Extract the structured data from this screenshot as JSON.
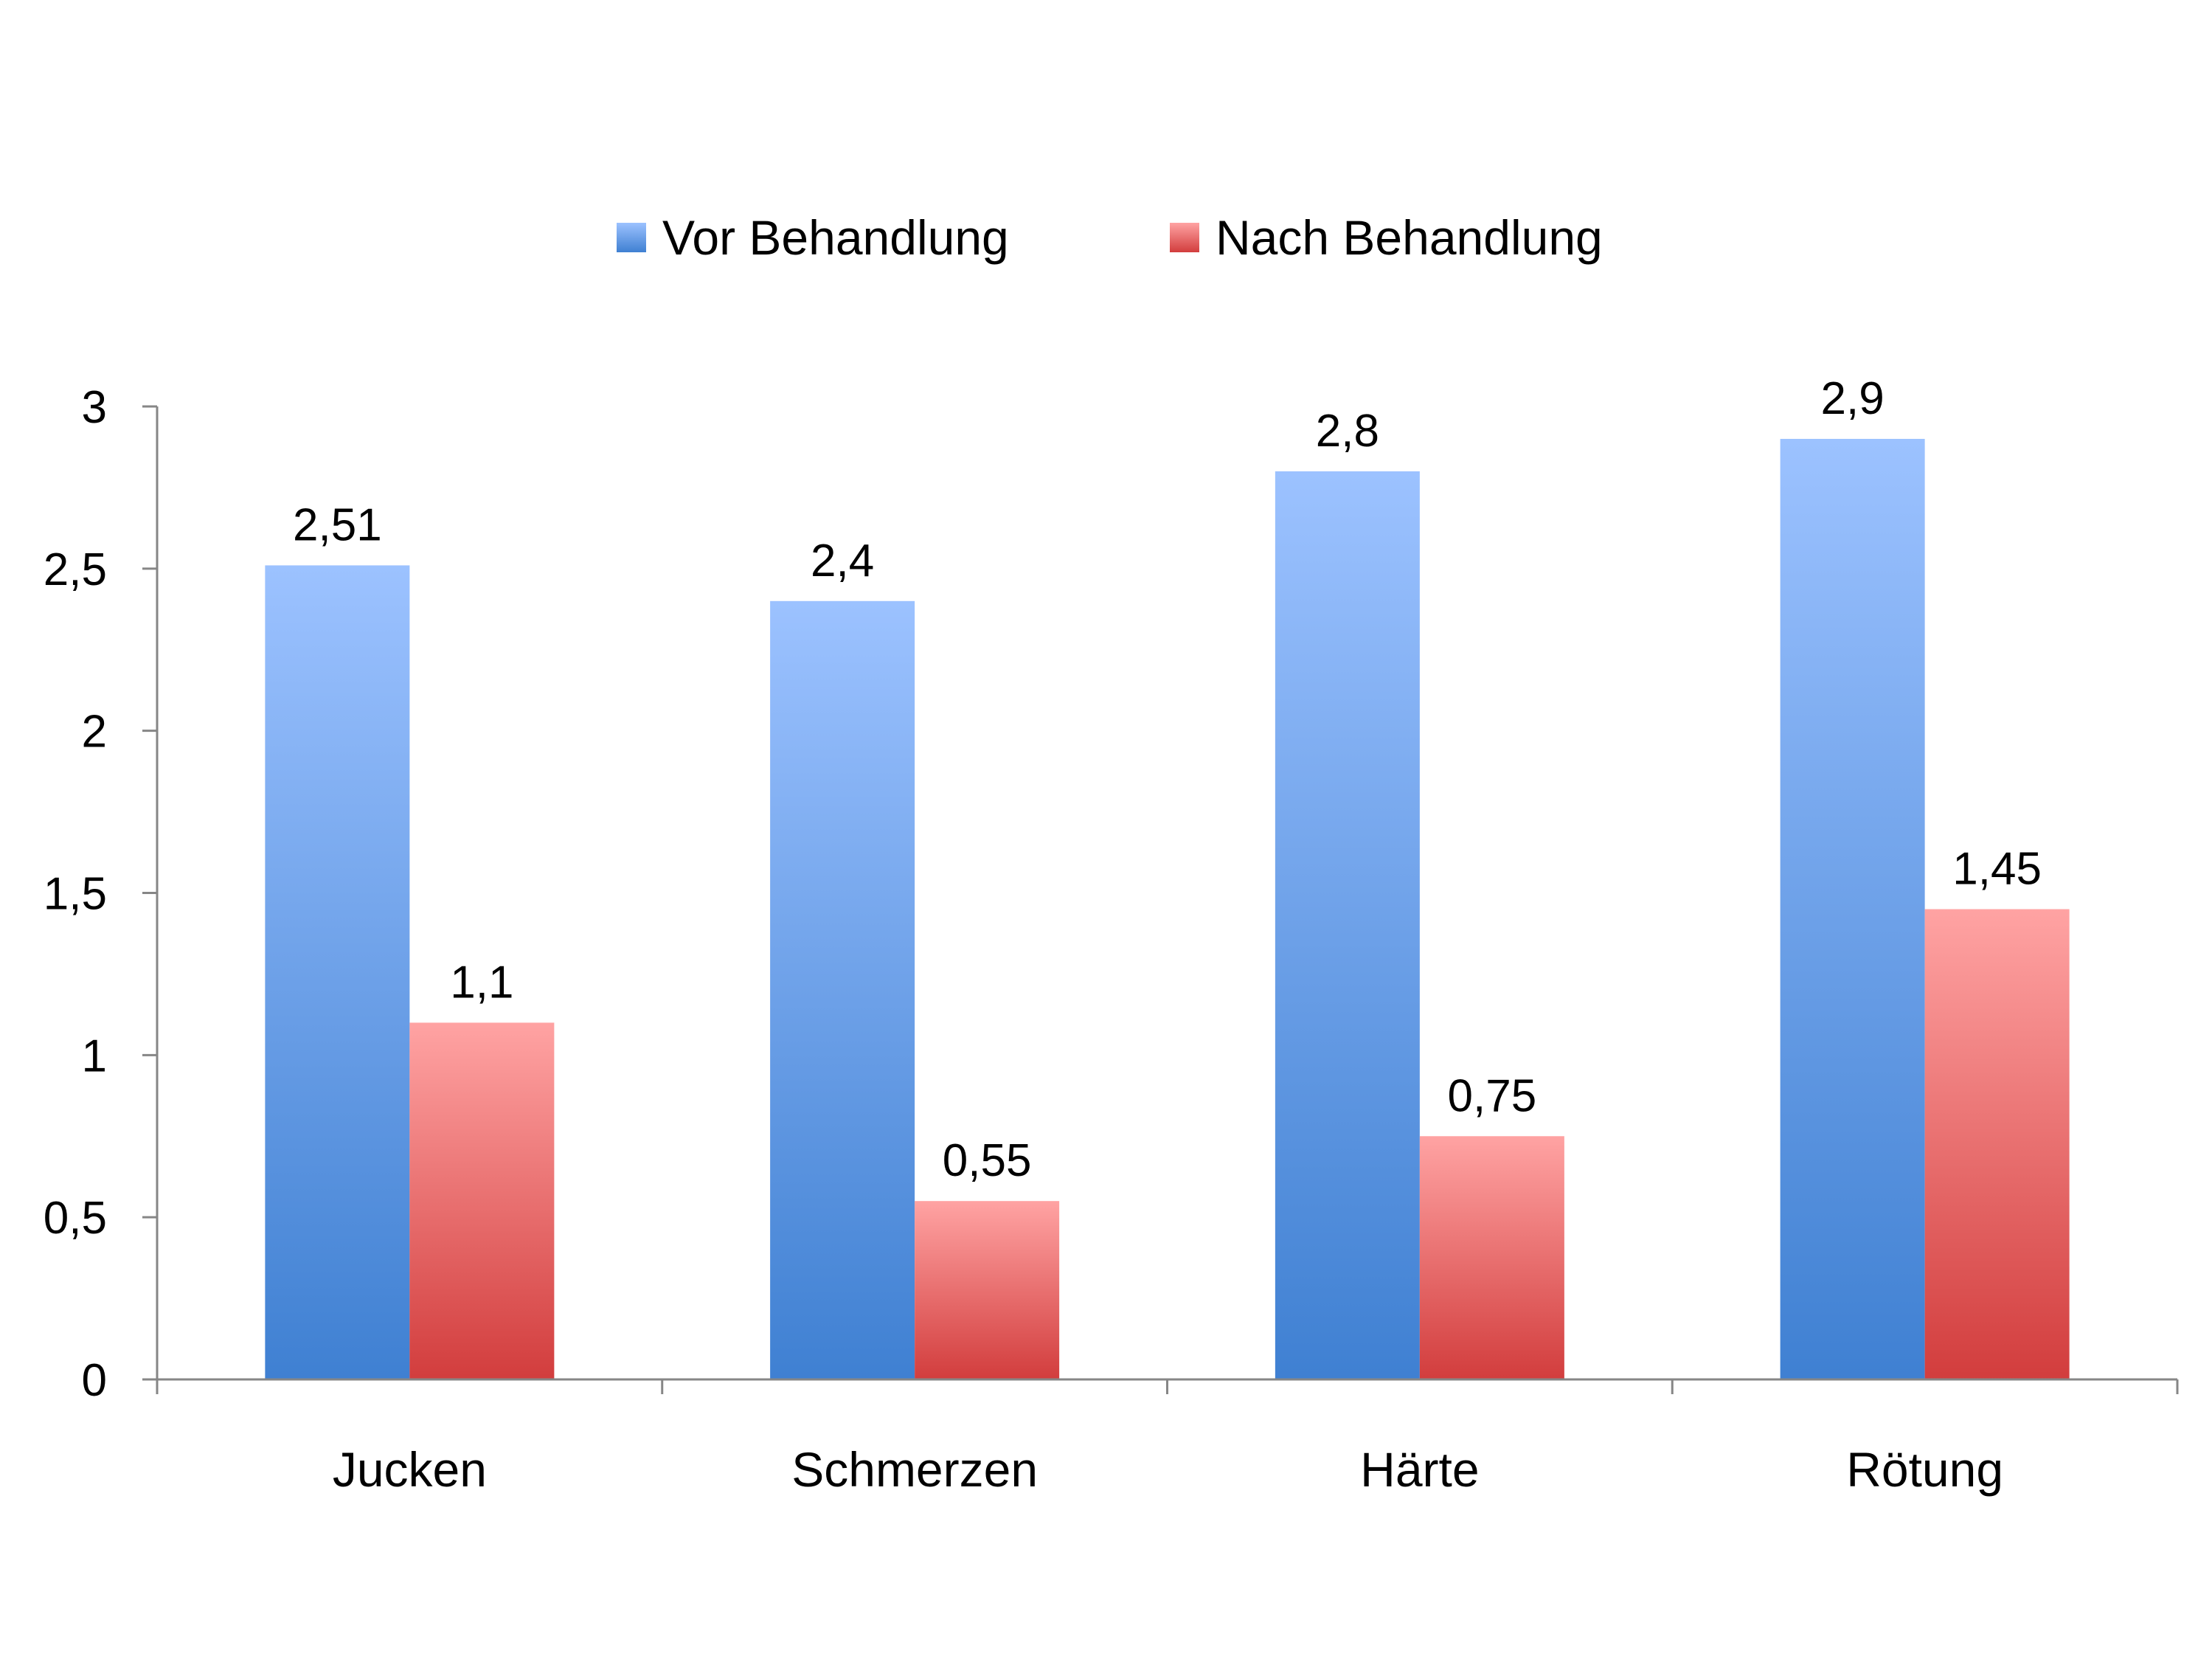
{
  "chart_data": {
    "type": "bar",
    "categories": [
      "Jucken",
      "Schmerzen",
      "Härte",
      "Rötung"
    ],
    "series": [
      {
        "name": "Vor Behandlung",
        "values": [
          2.51,
          2.4,
          2.8,
          2.9
        ],
        "labels": [
          "2,51",
          "2,4",
          "2,8",
          "2,9"
        ],
        "color_top": "#9cc2ff",
        "color_bottom": "#3f80d2"
      },
      {
        "name": "Nach Behandlung",
        "values": [
          1.1,
          0.55,
          0.75,
          1.45
        ],
        "labels": [
          "1,1",
          "0,55",
          "0,75",
          "1,45"
        ],
        "color_top": "#ffa3a3",
        "color_bottom": "#d23d3d"
      }
    ],
    "y_ticks": [
      0,
      0.5,
      1,
      1.5,
      2,
      2.5,
      3
    ],
    "y_tick_labels": [
      "0",
      "0,5",
      "1",
      "1,5",
      "2",
      "2,5",
      "3"
    ],
    "ylim": [
      0,
      3
    ],
    "title": "",
    "xlabel": "",
    "ylabel": "",
    "grid": false,
    "legend_position": "top"
  }
}
